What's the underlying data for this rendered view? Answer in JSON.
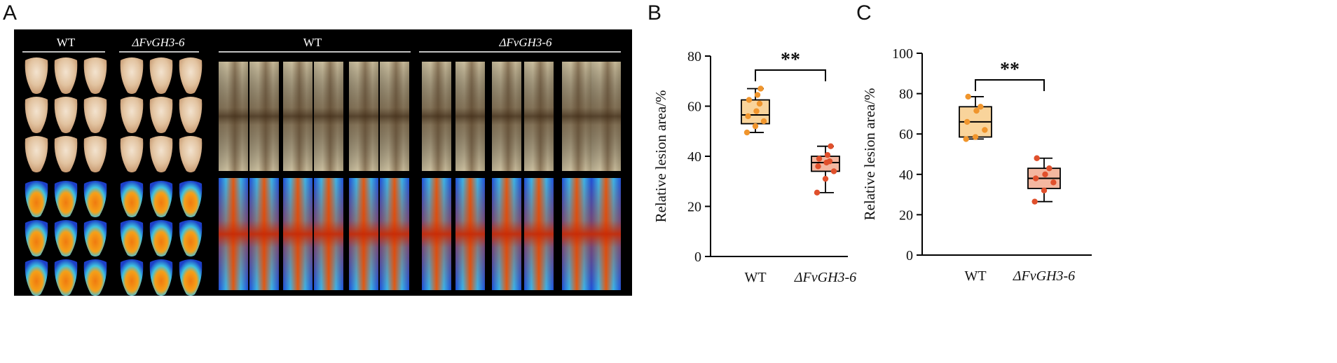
{
  "panels": {
    "a": {
      "letter": "A"
    },
    "b": {
      "letter": "B"
    },
    "c": {
      "letter": "C"
    }
  },
  "photo_panel": {
    "kernels": {
      "left_label": "WT",
      "right_label": "ΔFvGH3-6"
    },
    "stalks": {
      "left_label": "WT",
      "right_label": "ΔFvGH3-6"
    }
  },
  "colors": {
    "wt_fill": "#f9d49b",
    "wt_point": "#f0952c",
    "mut_fill": "#f3b7a0",
    "mut_point": "#e0502c",
    "panel_bg": "#000000"
  },
  "chart_data": [
    {
      "type": "box",
      "panel": "B",
      "ylabel": "Relative lesion area/%",
      "ylim": [
        0,
        80
      ],
      "yticks": [
        0,
        20,
        40,
        60,
        80
      ],
      "categories": [
        "WT",
        "ΔFvGH3-6"
      ],
      "significance": "**",
      "grid": false,
      "series": [
        {
          "category": "WT",
          "min": 49.5,
          "q1": 53,
          "median": 56.5,
          "q3": 62.5,
          "max": 67,
          "points": [
            49.5,
            52,
            54,
            56,
            58,
            61,
            62.5,
            64.5,
            67
          ]
        },
        {
          "category": "ΔFvGH3-6",
          "min": 25.5,
          "q1": 34,
          "median": 37.5,
          "q3": 40,
          "max": 44,
          "points": [
            25.5,
            31,
            34,
            36,
            37.5,
            38,
            39,
            40.5,
            44
          ]
        }
      ]
    },
    {
      "type": "box",
      "panel": "C",
      "ylabel": "Relative lesion area/%",
      "ylim": [
        0,
        100
      ],
      "yticks": [
        0,
        20,
        40,
        60,
        80,
        100
      ],
      "categories": [
        "WT",
        "ΔFvGH3-6"
      ],
      "significance": "**",
      "grid": false,
      "series": [
        {
          "category": "WT",
          "min": 57.5,
          "q1": 58.5,
          "median": 66,
          "q3": 73.5,
          "max": 78.5,
          "points": [
            57.5,
            58.5,
            62,
            66,
            71.5,
            73.5,
            78.5
          ]
        },
        {
          "category": "ΔFvGH3-6",
          "min": 26.5,
          "q1": 33,
          "median": 38,
          "q3": 43,
          "max": 48,
          "points": [
            26.5,
            32,
            36,
            38,
            40,
            43,
            48
          ]
        }
      ]
    }
  ]
}
